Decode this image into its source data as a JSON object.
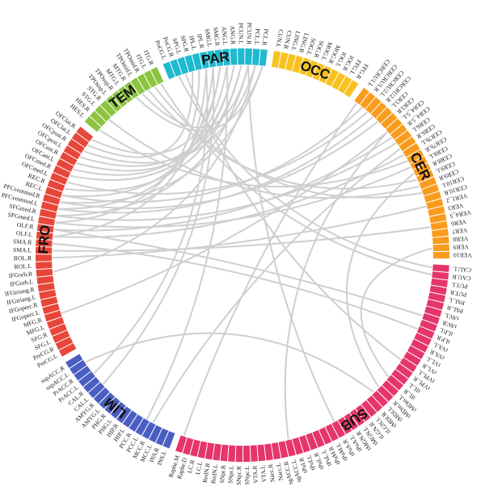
{
  "modules": [
    {
      "name": "FRO",
      "color": "#e8463a",
      "regions": [
        "PreCG.L",
        "PreCG.R",
        "SFG.L",
        "SFG.R",
        "MFG.L",
        "MFG.R",
        "IFGoperc.L",
        "IFGoperc.R",
        "IFGtriang.L",
        "IFGtriang.R",
        "IFGorb.L",
        "IFGorb.R",
        "ROL.L",
        "ROL.R",
        "SMA.L",
        "SMA.R",
        "OLF.L",
        "OLF.R",
        "SFGmed.L",
        "SFGmed.R",
        "PFCventmed.L",
        "PFCventmed.R",
        "REC.L",
        "REC.R",
        "OFCmed.L",
        "OFCmed.R",
        "OFCant.L",
        "OFCant.R",
        "OFCpost.L",
        "OFCpost.R",
        "OFClat.L",
        "OFClat.R"
      ]
    },
    {
      "name": "TEM",
      "color": "#8cc43f",
      "regions": [
        "HES.L",
        "HES.R",
        "STG.L",
        "STG.R",
        "TPOsup.L",
        "TPOsup.R",
        "MTG.L",
        "MTG.R",
        "TPOmid.L",
        "TPOmid.R",
        "ITG.L",
        "ITG.R"
      ]
    },
    {
      "name": "PAR",
      "color": "#1fb9d0",
      "regions": [
        "PoCG.L",
        "PoCG.R",
        "SPG.L",
        "SPG.R",
        "IPL.L",
        "IPL.R",
        "SMG.L",
        "SMG.R",
        "ANG.L",
        "ANG.R",
        "PCUN.L",
        "PCUN.R",
        "PCL.L",
        "PCL.R"
      ]
    },
    {
      "name": "OCC",
      "color": "#f9c11e",
      "regions": [
        "CUN.L",
        "CUN.R",
        "LING.L",
        "LING.R",
        "SOG.L",
        "SOG.R",
        "MOG.L",
        "MOG.R",
        "IOG.L",
        "IOG.R",
        "FFG.L",
        "FFG.R"
      ]
    },
    {
      "name": "CER",
      "color": "#f99c1e",
      "regions": [
        "CERCRU1.L",
        "CERCRU1.R",
        "CERCRU2.L",
        "CERCRU2.R",
        "CER3.L",
        "CER3.R",
        "CER4_5.L",
        "CER4_5.R",
        "CER6.L",
        "CER6.R",
        "CER7b.L",
        "CER7b.R",
        "CER8.L",
        "CER8.R",
        "CER9.L",
        "CER9.R",
        "CER10.L",
        "CER10.R",
        "VER1_2",
        "VER3",
        "VER4_5",
        "VER6",
        "VER7",
        "VER8",
        "VER9",
        "VER10"
      ]
    },
    {
      "name": "SUB",
      "color": "#e5356b",
      "regions": [
        "CAU.L",
        "CAU.R",
        "PUT.L",
        "PUT.R",
        "PAL.L",
        "PAL.R",
        "tAV.L",
        "tAV.R",
        "tLP.L",
        "tLP.R",
        "tVA.L",
        "tVA.R",
        "tVL.L",
        "tVL.R",
        "tVPL.L",
        "tVPL.R",
        "tIL.L",
        "tIL.R",
        "tMDm.L",
        "tMDm.R",
        "tMDl.L",
        "tMDl.R",
        "tLGN.L",
        "tLGN.R",
        "tMGN.L",
        "tMGN.R",
        "tPuA.L",
        "tPuA.R",
        "tPuM.L",
        "tPuM.R",
        "tPuL.L",
        "tPuL.R",
        "tPuI.L",
        "tPuI.R",
        "sgACC.L",
        "sgACC.R",
        "Nacc.L",
        "Nacc.R",
        "VTA.L",
        "VTA.R",
        "SNpc.L",
        "SNpc.R",
        "SNpr.L",
        "SNpr.R",
        "RedN.L",
        "RedN.R",
        "LC.L",
        "LC.R",
        "Raphe.D",
        "Raphe.M"
      ]
    },
    {
      "name": "LIM",
      "color": "#4a5ec2",
      "regions": [
        "INS.L",
        "INS.R",
        "MCC.L",
        "MCC.R",
        "PCC.L",
        "PCC.R",
        "HIP.L",
        "HIP.R",
        "PHG.L",
        "PHG.R",
        "AMYG.L",
        "AMYG.R",
        "CAL.L",
        "CAL.R",
        "PrACC.L",
        "PrACC.R",
        "supACC.L",
        "supACC.R"
      ]
    }
  ],
  "links": [
    [
      "OLF.L",
      "CER7b.L"
    ],
    [
      "OLF.R",
      "CER4_5.R"
    ],
    [
      "SFGmed.L",
      "CER8.L"
    ],
    [
      "SFGmed.R",
      "CER6.L"
    ],
    [
      "PFCventmed.L",
      "CERCRU2.R"
    ],
    [
      "PFCventmed.R",
      "CER3.L"
    ],
    [
      "REC.L",
      "CERCRU1.R"
    ],
    [
      "OFCmed.L",
      "CERCRU2.L"
    ],
    [
      "OFCant.R",
      "PCUN.L"
    ],
    [
      "OFCpost.L",
      "ANG.R"
    ],
    [
      "OFClat.R",
      "SMG.R"
    ],
    [
      "MTG.R",
      "PCL.R"
    ],
    [
      "TPOmid.L",
      "PCUN.R"
    ],
    [
      "TPOmid.R",
      "CER9.L"
    ],
    [
      "ITG.L",
      "CER10.L"
    ],
    [
      "MFG.R",
      "CER4_5.L"
    ],
    [
      "IFGorb.R",
      "PCL.L"
    ],
    [
      "ROL.R",
      "VER1_2"
    ],
    [
      "SMA.L",
      "VER6"
    ],
    [
      "SMA.R",
      "tLP.R"
    ],
    [
      "OLF.R",
      "tAV.R"
    ],
    [
      "MCC.R",
      "CER6.R"
    ],
    [
      "CAL.L",
      "SMG.L"
    ],
    [
      "PrACC.L",
      "IPL.R"
    ],
    [
      "supACC.L",
      "tMDl.L"
    ],
    [
      "PCC.L",
      "ANG.L"
    ],
    [
      "Raphe.M",
      "CERCRU1.L"
    ],
    [
      "tPuA.R",
      "PCUN.R"
    ],
    [
      "tVPL.L",
      "SPG.L"
    ],
    [
      "sgACC.L",
      "CER4_5.L"
    ],
    [
      "CAU.L",
      "PoCG.R"
    ],
    [
      "CAU.R",
      "ITG.R"
    ],
    [
      "tMDm.R",
      "CER8.R"
    ],
    [
      "tIL.R",
      "VER9"
    ],
    [
      "HES.L",
      "CER7b.R"
    ],
    [
      "STG.L",
      "CER9.R"
    ],
    [
      "SFGmed.L",
      "IPL.L"
    ],
    [
      "PFCventmed.L",
      "SMG.L"
    ],
    [
      "REC.R",
      "PCUN.L"
    ],
    [
      "OFCant.L",
      "ANG.L"
    ],
    [
      "OFCpost.R",
      "PCL.L"
    ],
    [
      "OFClat.L",
      "SPG.R"
    ],
    [
      "OFCmed.R",
      "ANG.R"
    ],
    [
      "SFGmed.R",
      "PCUN.R"
    ],
    [
      "REC.L",
      "SMG.R"
    ],
    [
      "OLF.L",
      "IPL.R"
    ],
    [
      "PFCventmed.R",
      "PCL.R"
    ]
  ]
}
